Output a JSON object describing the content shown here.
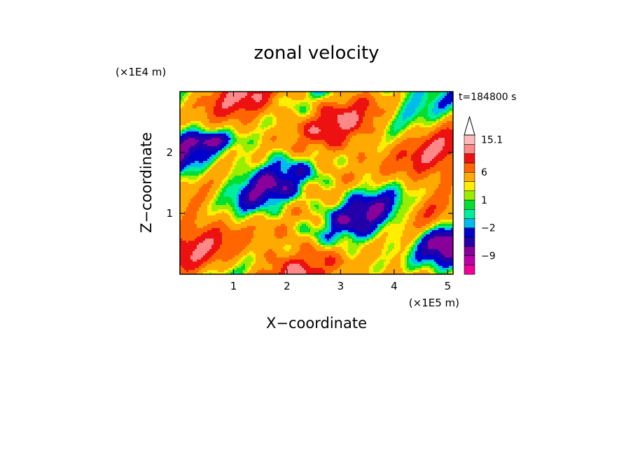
{
  "chart_data": {
    "type": "heatmap",
    "title": "zonal velocity",
    "xlabel": "X−coordinate",
    "ylabel": "Z−coordinate",
    "x_scale_label": "(×1E5 m)",
    "y_scale_label": "(×1E4 m)",
    "time_label": "t=184800 s",
    "xlim": [
      0,
      5.1
    ],
    "ylim": [
      0,
      3
    ],
    "x_ticks": [
      1,
      2,
      3,
      4,
      5
    ],
    "x_tick_labels": [
      "1",
      "2",
      "3",
      "4",
      "5"
    ],
    "y_ticks": [
      1,
      2
    ],
    "y_tick_labels": [
      "1",
      "2"
    ],
    "colorbar": {
      "levels": [
        -15,
        -12,
        -9,
        -6,
        -4,
        -2,
        -1,
        0,
        1,
        2,
        3,
        6,
        9,
        12,
        15.1
      ],
      "colors": [
        "#ee0099",
        "#bb00aa",
        "#880099",
        "#2200aa",
        "#0000cc",
        "#00bbee",
        "#00ee99",
        "#00dd33",
        "#99ee00",
        "#ffee00",
        "#ffaa00",
        "#ff6600",
        "#ee1111",
        "#ff8888",
        "#ffbbbb"
      ],
      "tick_labels": [
        {
          "value": 15.1,
          "label": "15.1"
        },
        {
          "value": 6,
          "label": "6"
        },
        {
          "value": 1,
          "label": "1"
        },
        {
          "value": -2,
          "label": "−2"
        },
        {
          "value": -9,
          "label": "−9"
        }
      ],
      "extend_max": true
    },
    "grid": false
  }
}
